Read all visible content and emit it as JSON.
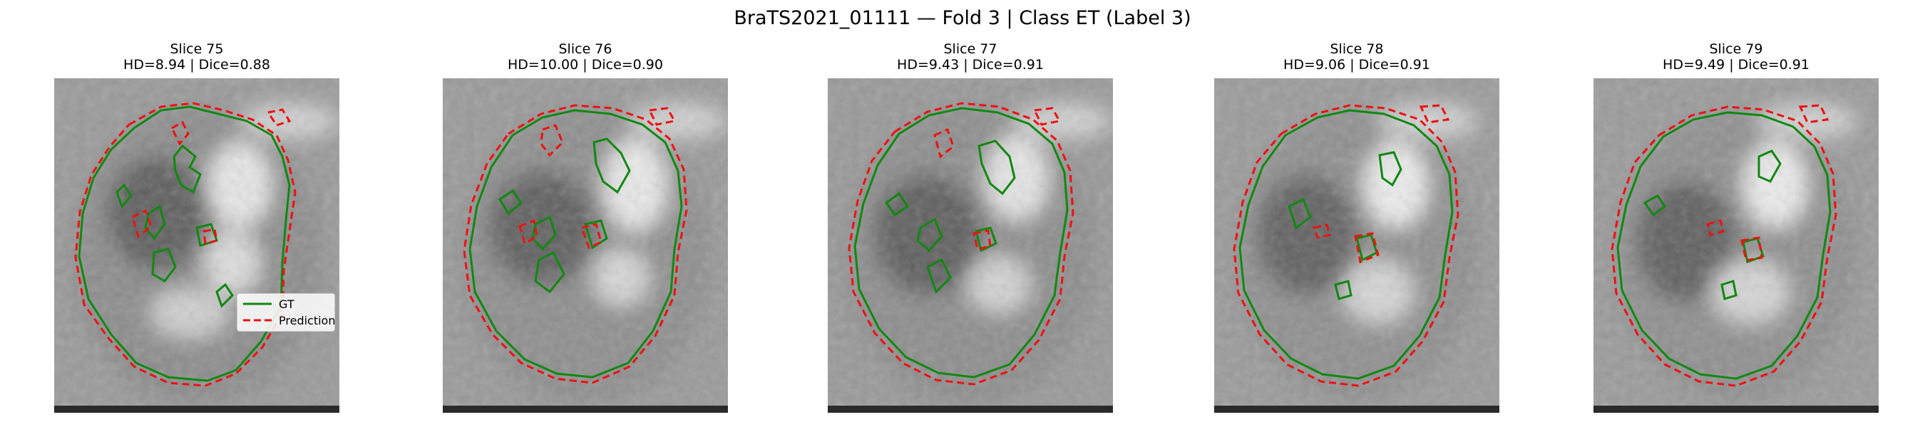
{
  "figure": {
    "title": "BraTS2021_01111 — Fold 3 | Class ET (Label 3)"
  },
  "colors": {
    "gt": "#118811",
    "prediction": "#ee1111"
  },
  "legend": {
    "gt_label": "GT",
    "prediction_label": "Prediction"
  },
  "panels": [
    {
      "slice": "Slice 75",
      "metrics": "HD=8.94 | Dice=0.88"
    },
    {
      "slice": "Slice 76",
      "metrics": "HD=10.00 | Dice=0.90"
    },
    {
      "slice": "Slice 77",
      "metrics": "HD=9.43 | Dice=0.91"
    },
    {
      "slice": "Slice 78",
      "metrics": "HD=9.06 | Dice=0.91"
    },
    {
      "slice": "Slice 79",
      "metrics": "HD=9.49 | Dice=0.91"
    }
  ]
}
